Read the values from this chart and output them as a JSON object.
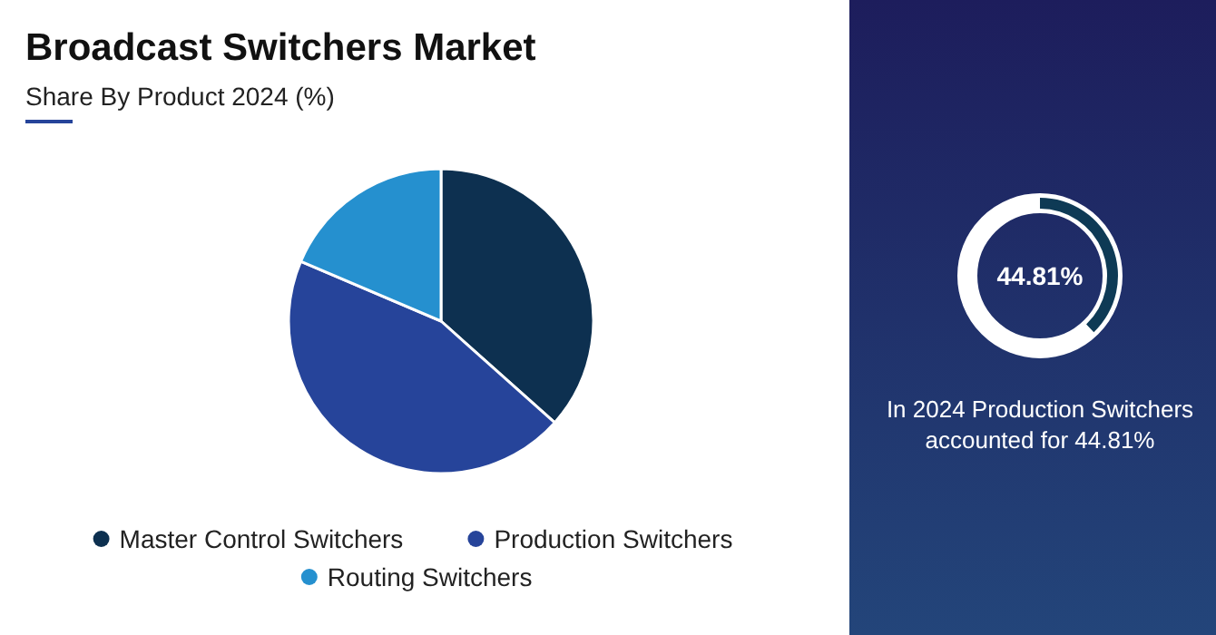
{
  "chart_data": [
    {
      "type": "pie",
      "title": "Broadcast Switchers Market",
      "subtitle": "Share By Product 2024 (%)",
      "categories": [
        "Master Control Switchers",
        "Production Switchers",
        "Routing Switchers"
      ],
      "values": [
        36.6,
        44.81,
        18.59
      ],
      "colors": [
        "#0d3050",
        "#26449a",
        "#2590cf"
      ],
      "legend": "bottom"
    },
    {
      "type": "other",
      "title": "44.81%",
      "annotations": [
        "In 2024 Production Switchers accounted for 44.81%"
      ]
    }
  ]
}
